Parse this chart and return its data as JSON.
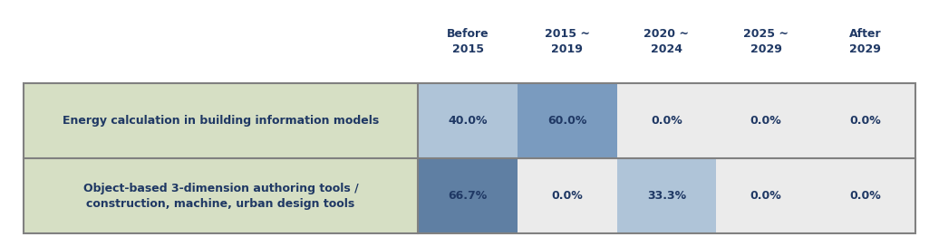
{
  "col_headers": [
    "Before\n2015",
    "2015 ~\n2019",
    "2020 ~\n2024",
    "2025 ~\n2029",
    "After\n2029"
  ],
  "rows": [
    {
      "label": "Energy calculation in building information models",
      "values": [
        "40.0%",
        "60.0%",
        "0.0%",
        "0.0%",
        "0.0%"
      ],
      "cell_colors": [
        "#afc4d8",
        "#7a9bbf",
        "#ebebeb",
        "#ebebeb",
        "#ebebeb"
      ],
      "row_bg": "#d6dfc4"
    },
    {
      "label": "Object-based 3-dimension authoring tools /\nconstruction, machine, urban design tools",
      "values": [
        "66.7%",
        "0.0%",
        "33.3%",
        "0.0%",
        "0.0%"
      ],
      "cell_colors": [
        "#5f7fa3",
        "#ebebeb",
        "#afc4d8",
        "#ebebeb",
        "#ebebeb"
      ],
      "row_bg": "#d6dfc4"
    }
  ],
  "header_color": "#1f3864",
  "value_color": "#1f3864",
  "label_color": "#1f3864",
  "border_color": "#808080",
  "fig_bg": "#ffffff",
  "header_fontsize": 9,
  "cell_fontsize": 9,
  "label_fontsize": 9
}
